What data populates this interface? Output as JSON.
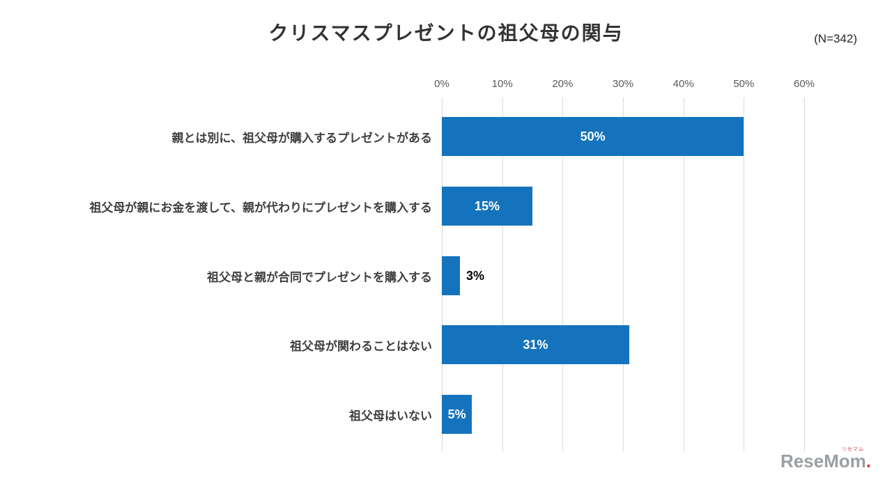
{
  "header": {
    "title": "クリスマスプレゼントの祖父母の関与",
    "sample_size": "(N=342)"
  },
  "chart_data": {
    "type": "bar",
    "orientation": "horizontal",
    "title": "クリスマスプレゼントの祖父母の関与",
    "categories": [
      "親とは別に、祖父母が購入するプレゼントがある",
      "祖父母が親にお金を渡して、親が代わりにプレゼントを購入する",
      "祖父母と親が合同でプレゼントを購入する",
      "祖父母が関わることはない",
      "祖父母はいない"
    ],
    "values": [
      50,
      15,
      3,
      31,
      5
    ],
    "value_labels": [
      "50%",
      "15%",
      "3%",
      "31%",
      "5%"
    ],
    "x_ticks": [
      "0%",
      "10%",
      "20%",
      "30%",
      "40%",
      "50%",
      "60%"
    ],
    "x_tick_values": [
      0,
      10,
      20,
      30,
      40,
      50,
      60
    ],
    "xlim": [
      0,
      60
    ],
    "bar_color": "#1473bc",
    "grid": true,
    "gridline_color": "#d9d9d9",
    "legend": false
  },
  "footer": {
    "logo_text": "ReseMom",
    "logo_ruby": "リセマム",
    "logo_dot": "."
  }
}
